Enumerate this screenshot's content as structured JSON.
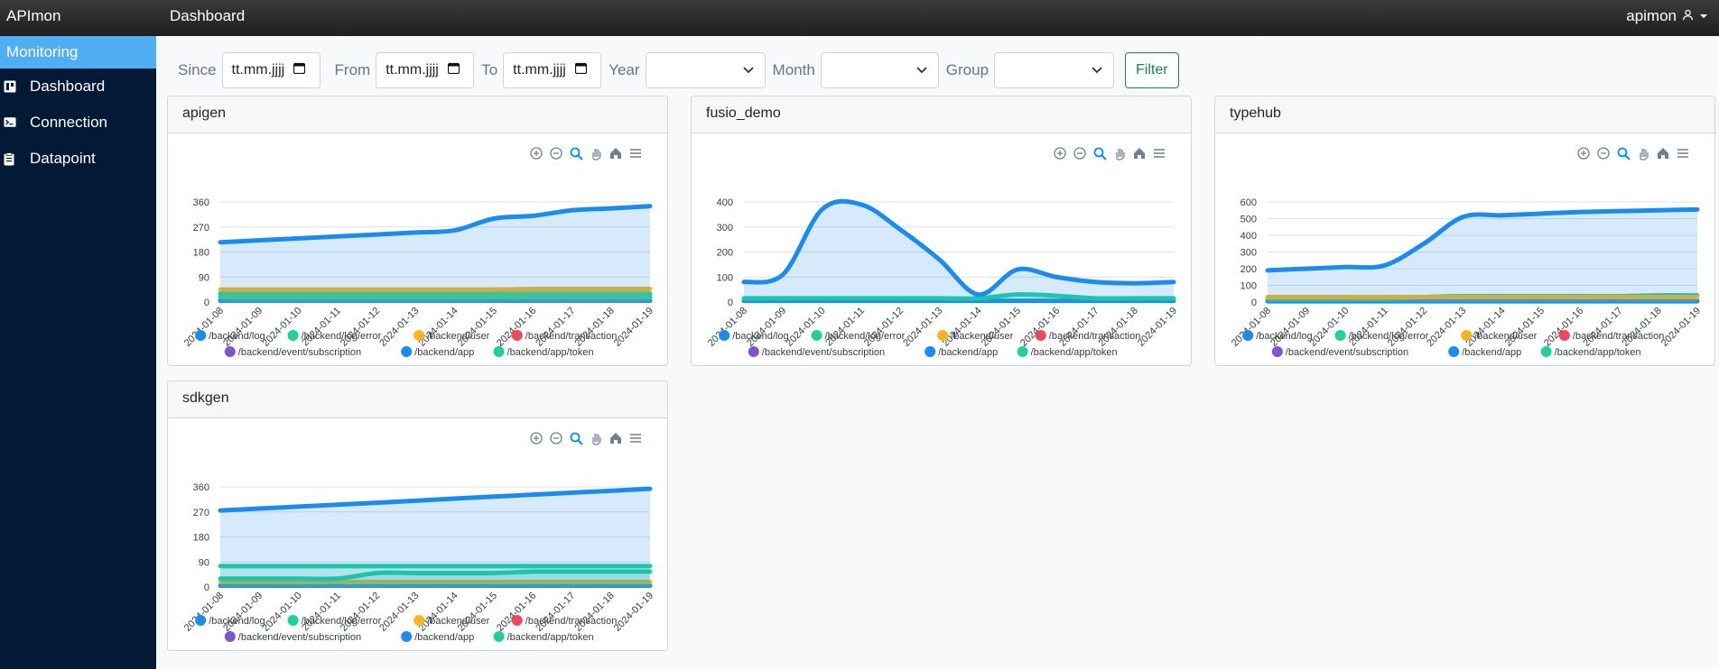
{
  "app": {
    "brand": "APImon",
    "page_title": "Dashboard",
    "user": "apimon"
  },
  "sidebar": {
    "header": "Monitoring",
    "items": [
      {
        "label": "Dashboard",
        "icon": "dashboard-icon"
      },
      {
        "label": "Connection",
        "icon": "terminal-icon"
      },
      {
        "label": "Datapoint",
        "icon": "clipboard-icon"
      }
    ]
  },
  "filters": {
    "since_label": "Since",
    "since_value": "tt.mm.jjjj",
    "from_label": "From",
    "from_value": "tt.mm.jjjj",
    "to_label": "To",
    "to_value": "tt.mm.jjjj",
    "year_label": "Year",
    "month_label": "Month",
    "group_label": "Group",
    "filter_button": "Filter"
  },
  "colors": {
    "/backend/log": "#1a8cf0",
    "/backend/log/error": "#1fd19d",
    "/backend/user": "#f9b521",
    "/backend/transaction": "#f3455c",
    "/backend/event/subscription": "#7a57d1",
    "/backend/app": "#1a8cf0",
    "/backend/app/token": "#1fd19d"
  },
  "legend_rows": [
    [
      "/backend/log",
      "/backend/log/error",
      "/backend/user",
      "/backend/transaction"
    ],
    [
      "/backend/event/subscription",
      "/backend/app",
      "/backend/app/token"
    ]
  ],
  "chart_data": [
    {
      "type": "area",
      "title": "apigen",
      "x": [
        "2024-01-08",
        "2024-01-09",
        "2024-01-10",
        "2024-01-11",
        "2024-01-12",
        "2024-01-13",
        "2024-01-14",
        "2024-01-15",
        "2024-01-16",
        "2024-01-17",
        "2024-01-18",
        "2024-01-19"
      ],
      "yticks": [
        0,
        90,
        180,
        270,
        360
      ],
      "ylim": [
        0,
        360
      ],
      "series": [
        {
          "name": "/backend/log",
          "values": [
            215,
            222,
            229,
            236,
            243,
            250,
            258,
            300,
            310,
            330,
            337,
            345
          ]
        },
        {
          "name": "/backend/user",
          "values": [
            45,
            45,
            45,
            45,
            45,
            45,
            45,
            45,
            47,
            47,
            47,
            47
          ]
        },
        {
          "name": "/backend/log/error",
          "values": [
            30,
            30,
            30,
            30,
            30,
            30,
            30,
            30,
            30,
            30,
            30,
            30
          ]
        },
        {
          "name": "/backend/app/token",
          "values": [
            18,
            18,
            18,
            18,
            18,
            18,
            18,
            18,
            18,
            18,
            18,
            18
          ]
        },
        {
          "name": "/backend/app",
          "values": [
            5,
            5,
            5,
            5,
            5,
            5,
            5,
            5,
            5,
            5,
            5,
            5
          ]
        }
      ]
    },
    {
      "type": "area",
      "title": "fusio_demo",
      "x": [
        "2024-01-08",
        "2024-01-09",
        "2024-01-10",
        "2024-01-11",
        "2024-01-12",
        "2024-01-13",
        "2024-01-14",
        "2024-01-15",
        "2024-01-16",
        "2024-01-17",
        "2024-01-18",
        "2024-01-19"
      ],
      "yticks": [
        0,
        100,
        200,
        300,
        400
      ],
      "ylim": [
        0,
        400
      ],
      "series": [
        {
          "name": "/backend/log",
          "values": [
            80,
            110,
            370,
            390,
            290,
            170,
            30,
            130,
            100,
            80,
            75,
            80
          ]
        },
        {
          "name": "/backend/log/error",
          "values": [
            15,
            15,
            15,
            15,
            15,
            15,
            15,
            30,
            25,
            15,
            15,
            15
          ]
        },
        {
          "name": "/backend/app",
          "values": [
            5,
            5,
            5,
            5,
            5,
            5,
            5,
            5,
            5,
            5,
            5,
            5
          ]
        }
      ]
    },
    {
      "type": "area",
      "title": "typehub",
      "x": [
        "2024-01-08",
        "2024-01-09",
        "2024-01-10",
        "2024-01-11",
        "2024-01-12",
        "2024-01-13",
        "2024-01-14",
        "2024-01-15",
        "2024-01-16",
        "2024-01-17",
        "2024-01-18",
        "2024-01-19"
      ],
      "yticks": [
        0,
        100,
        200,
        300,
        400,
        500,
        600
      ],
      "ylim": [
        0,
        600
      ],
      "series": [
        {
          "name": "/backend/log",
          "values": [
            190,
            200,
            210,
            220,
            350,
            510,
            520,
            530,
            540,
            545,
            550,
            555
          ]
        },
        {
          "name": "/backend/user",
          "values": [
            30,
            30,
            30,
            30,
            30,
            30,
            30,
            30,
            30,
            30,
            30,
            30
          ]
        },
        {
          "name": "/backend/log/error",
          "values": [
            20,
            20,
            20,
            20,
            30,
            35,
            35,
            35,
            35,
            35,
            40,
            40
          ]
        },
        {
          "name": "/backend/app",
          "values": [
            5,
            5,
            5,
            5,
            5,
            5,
            5,
            5,
            5,
            5,
            5,
            5
          ]
        }
      ]
    },
    {
      "type": "area",
      "title": "sdkgen",
      "x": [
        "2024-01-08",
        "2024-01-09",
        "2024-01-10",
        "2024-01-11",
        "2024-01-12",
        "2024-01-13",
        "2024-01-14",
        "2024-01-15",
        "2024-01-16",
        "2024-01-17",
        "2024-01-18",
        "2024-01-19"
      ],
      "yticks": [
        0,
        90,
        180,
        270,
        360
      ],
      "ylim": [
        0,
        360
      ],
      "series": [
        {
          "name": "/backend/log",
          "values": [
            275,
            282,
            289,
            296,
            303,
            310,
            318,
            325,
            332,
            339,
            346,
            353
          ]
        },
        {
          "name": "/backend/log/error",
          "values": [
            75,
            75,
            75,
            75,
            75,
            75,
            75,
            75,
            75,
            75,
            75,
            75
          ]
        },
        {
          "name": "/backend/app/token",
          "values": [
            30,
            30,
            30,
            30,
            50,
            50,
            50,
            50,
            55,
            55,
            55,
            55
          ]
        },
        {
          "name": "/backend/user",
          "values": [
            18,
            18,
            18,
            18,
            18,
            18,
            18,
            18,
            18,
            18,
            18,
            18
          ]
        },
        {
          "name": "/backend/app",
          "values": [
            5,
            5,
            5,
            5,
            5,
            5,
            5,
            5,
            5,
            5,
            5,
            5
          ]
        }
      ]
    }
  ]
}
